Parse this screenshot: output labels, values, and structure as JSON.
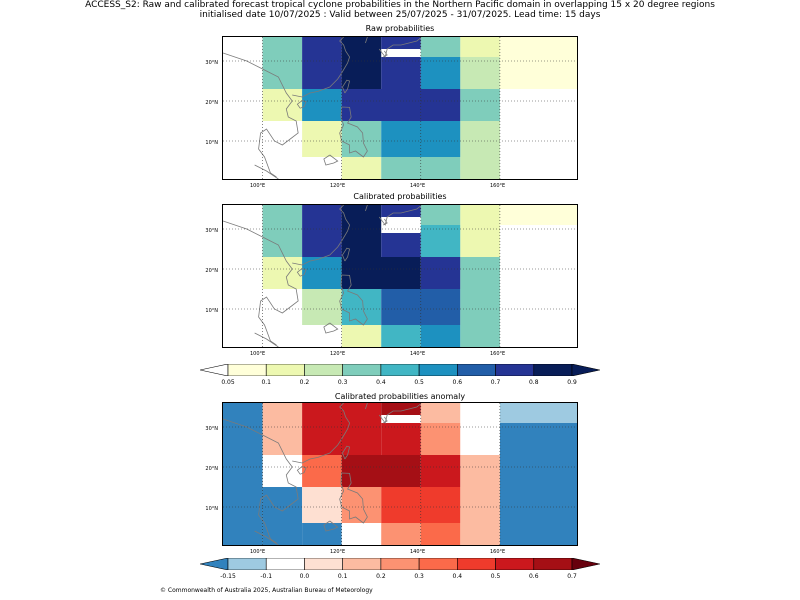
{
  "header": {
    "line1": "ACCESS_S2: Raw and calibrated forecast tropical cyclone probabilities in the Northern Pacific domain in overlapping 15 x 20 degree regions",
    "line2": "initialised date 10/07/2025 :  Valid between 25/07/2025 - 31/07/2025. Lead time: 15 days"
  },
  "axes": {
    "x_ticks": [
      "100°E",
      "120°E",
      "140°E",
      "160°E"
    ],
    "x_tick_values": [
      100,
      120,
      140,
      160
    ],
    "y_ticks": [
      "10°N",
      "20°N",
      "30°N"
    ],
    "y_tick_values": [
      10,
      20,
      30
    ],
    "lon_range": [
      90,
      180
    ],
    "lat_range": [
      0,
      36
    ]
  },
  "colorbars": {
    "prob": {
      "labels": [
        "0.05",
        "0.1",
        "0.2",
        "0.3",
        "0.4",
        "0.5",
        "0.6",
        "0.7",
        "0.8",
        "0.9"
      ],
      "colors": [
        "#ffffd9",
        "#edf8b1",
        "#c7e9b4",
        "#7fcdbb",
        "#41b6c4",
        "#1d91c0",
        "#225ea8",
        "#253494",
        "#081d58"
      ],
      "under": "#ffffff",
      "over": "#081d58"
    },
    "anom": {
      "labels": [
        "-0.15",
        "-0.1",
        "0.0",
        "0.1",
        "0.2",
        "0.3",
        "0.4",
        "0.5",
        "0.6",
        "0.7"
      ],
      "colors": [
        "#9ecae1",
        "#ffffff",
        "#fee0d2",
        "#fcbba1",
        "#fc9272",
        "#fb6a4a",
        "#ef3b2c",
        "#cb181d",
        "#a50f15"
      ],
      "under": "#3182bd",
      "over": "#67000d"
    }
  },
  "footer": {
    "text": "© Commonwealth of Australia 2025, Australian Bureau of Meteorology"
  },
  "chart_data": [
    {
      "type": "heatmap",
      "title": "Raw probabilities",
      "scale": "prob",
      "cells": [
        {
          "lon": [
            100,
            110
          ],
          "lat": [
            23,
            36
          ],
          "v": 0.35
        },
        {
          "lon": [
            110,
            120
          ],
          "lat": [
            23,
            36
          ],
          "v": 0.75
        },
        {
          "lon": [
            120,
            130
          ],
          "lat": [
            23,
            36
          ],
          "v": 0.85
        },
        {
          "lon": [
            130,
            140
          ],
          "lat": [
            33,
            36
          ],
          "v": 0.75
        },
        {
          "lon": [
            130,
            140
          ],
          "lat": [
            23,
            31
          ],
          "v": 0.75
        },
        {
          "lon": [
            140,
            150
          ],
          "lat": [
            31,
            36
          ],
          "v": 0.35
        },
        {
          "lon": [
            140,
            150
          ],
          "lat": [
            23,
            31
          ],
          "v": 0.55
        },
        {
          "lon": [
            150,
            160
          ],
          "lat": [
            31,
            36
          ],
          "v": 0.15
        },
        {
          "lon": [
            150,
            160
          ],
          "lat": [
            23,
            31
          ],
          "v": 0.25
        },
        {
          "lon": [
            160,
            180
          ],
          "lat": [
            23,
            36
          ],
          "v": 0.07
        },
        {
          "lon": [
            100,
            110
          ],
          "lat": [
            15,
            23
          ],
          "v": 0.15
        },
        {
          "lon": [
            110,
            120
          ],
          "lat": [
            15,
            23
          ],
          "v": 0.55
        },
        {
          "lon": [
            120,
            150
          ],
          "lat": [
            15,
            23
          ],
          "v": 0.75
        },
        {
          "lon": [
            150,
            160
          ],
          "lat": [
            15,
            23
          ],
          "v": 0.35
        },
        {
          "lon": [
            110,
            120
          ],
          "lat": [
            6,
            15
          ],
          "v": 0.15
        },
        {
          "lon": [
            120,
            130
          ],
          "lat": [
            6,
            15
          ],
          "v": 0.35
        },
        {
          "lon": [
            130,
            150
          ],
          "lat": [
            6,
            15
          ],
          "v": 0.55
        },
        {
          "lon": [
            150,
            160
          ],
          "lat": [
            6,
            15
          ],
          "v": 0.25
        },
        {
          "lon": [
            120,
            130
          ],
          "lat": [
            0,
            6
          ],
          "v": 0.15
        },
        {
          "lon": [
            130,
            150
          ],
          "lat": [
            0,
            6
          ],
          "v": 0.35
        },
        {
          "lon": [
            150,
            160
          ],
          "lat": [
            0,
            6
          ],
          "v": 0.25
        }
      ]
    },
    {
      "type": "heatmap",
      "title": "Calibrated probabilities",
      "scale": "prob",
      "cells": [
        {
          "lon": [
            100,
            110
          ],
          "lat": [
            23,
            36
          ],
          "v": 0.35
        },
        {
          "lon": [
            110,
            120
          ],
          "lat": [
            23,
            36
          ],
          "v": 0.75
        },
        {
          "lon": [
            120,
            130
          ],
          "lat": [
            23,
            36
          ],
          "v": 0.85
        },
        {
          "lon": [
            130,
            140
          ],
          "lat": [
            33,
            36
          ],
          "v": 0.75
        },
        {
          "lon": [
            130,
            140
          ],
          "lat": [
            23,
            29
          ],
          "v": 0.75
        },
        {
          "lon": [
            140,
            150
          ],
          "lat": [
            31,
            36
          ],
          "v": 0.35
        },
        {
          "lon": [
            140,
            150
          ],
          "lat": [
            23,
            31
          ],
          "v": 0.45
        },
        {
          "lon": [
            150,
            160
          ],
          "lat": [
            23,
            36
          ],
          "v": 0.15
        },
        {
          "lon": [
            160,
            180
          ],
          "lat": [
            31,
            36
          ],
          "v": 0.07
        },
        {
          "lon": [
            100,
            110
          ],
          "lat": [
            15,
            23
          ],
          "v": 0.15
        },
        {
          "lon": [
            110,
            120
          ],
          "lat": [
            15,
            23
          ],
          "v": 0.55
        },
        {
          "lon": [
            120,
            140
          ],
          "lat": [
            15,
            23
          ],
          "v": 0.85
        },
        {
          "lon": [
            140,
            150
          ],
          "lat": [
            15,
            23
          ],
          "v": 0.75
        },
        {
          "lon": [
            150,
            160
          ],
          "lat": [
            15,
            23
          ],
          "v": 0.35
        },
        {
          "lon": [
            110,
            120
          ],
          "lat": [
            6,
            15
          ],
          "v": 0.25
        },
        {
          "lon": [
            120,
            130
          ],
          "lat": [
            6,
            15
          ],
          "v": 0.45
        },
        {
          "lon": [
            130,
            150
          ],
          "lat": [
            6,
            15
          ],
          "v": 0.65
        },
        {
          "lon": [
            150,
            160
          ],
          "lat": [
            6,
            15
          ],
          "v": 0.35
        },
        {
          "lon": [
            120,
            130
          ],
          "lat": [
            0,
            6
          ],
          "v": 0.15
        },
        {
          "lon": [
            130,
            140
          ],
          "lat": [
            0,
            6
          ],
          "v": 0.45
        },
        {
          "lon": [
            140,
            150
          ],
          "lat": [
            0,
            6
          ],
          "v": 0.55
        },
        {
          "lon": [
            150,
            160
          ],
          "lat": [
            0,
            6
          ],
          "v": 0.35
        }
      ]
    },
    {
      "type": "heatmap",
      "title": "Calibrated probabilities anomaly",
      "scale": "anom",
      "cells": [
        {
          "lon": [
            90,
            100
          ],
          "lat": [
            0,
            36
          ],
          "v": -0.2
        },
        {
          "lon": [
            100,
            110
          ],
          "lat": [
            0,
            15
          ],
          "v": -0.2
        },
        {
          "lon": [
            110,
            120
          ],
          "lat": [
            0,
            6
          ],
          "v": -0.2
        },
        {
          "lon": [
            160,
            180
          ],
          "lat": [
            0,
            31
          ],
          "v": -0.2
        },
        {
          "lon": [
            160,
            180
          ],
          "lat": [
            31,
            36
          ],
          "v": -0.12
        },
        {
          "lon": [
            100,
            110
          ],
          "lat": [
            23,
            36
          ],
          "v": 0.15
        },
        {
          "lon": [
            110,
            130
          ],
          "lat": [
            23,
            36
          ],
          "v": 0.55
        },
        {
          "lon": [
            130,
            140
          ],
          "lat": [
            33,
            36
          ],
          "v": 0.65
        },
        {
          "lon": [
            130,
            140
          ],
          "lat": [
            23,
            31
          ],
          "v": 0.55
        },
        {
          "lon": [
            140,
            150
          ],
          "lat": [
            31,
            36
          ],
          "v": 0.15
        },
        {
          "lon": [
            140,
            150
          ],
          "lat": [
            23,
            31
          ],
          "v": 0.25
        },
        {
          "lon": [
            150,
            160
          ],
          "lat": [
            23,
            36
          ],
          "v": -0.05
        },
        {
          "lon": [
            100,
            110
          ],
          "lat": [
            15,
            23
          ],
          "v": -0.05
        },
        {
          "lon": [
            110,
            120
          ],
          "lat": [
            15,
            23
          ],
          "v": 0.35
        },
        {
          "lon": [
            120,
            140
          ],
          "lat": [
            15,
            23
          ],
          "v": 0.65
        },
        {
          "lon": [
            140,
            150
          ],
          "lat": [
            15,
            23
          ],
          "v": 0.55
        },
        {
          "lon": [
            150,
            160
          ],
          "lat": [
            15,
            23
          ],
          "v": 0.15
        },
        {
          "lon": [
            110,
            120
          ],
          "lat": [
            6,
            15
          ],
          "v": 0.05
        },
        {
          "lon": [
            120,
            130
          ],
          "lat": [
            6,
            15
          ],
          "v": 0.25
        },
        {
          "lon": [
            130,
            150
          ],
          "lat": [
            6,
            15
          ],
          "v": 0.45
        },
        {
          "lon": [
            150,
            160
          ],
          "lat": [
            6,
            15
          ],
          "v": 0.15
        },
        {
          "lon": [
            120,
            130
          ],
          "lat": [
            0,
            6
          ],
          "v": -0.05
        },
        {
          "lon": [
            130,
            140
          ],
          "lat": [
            0,
            6
          ],
          "v": 0.25
        },
        {
          "lon": [
            140,
            150
          ],
          "lat": [
            0,
            6
          ],
          "v": 0.35
        },
        {
          "lon": [
            150,
            160
          ],
          "lat": [
            0,
            6
          ],
          "v": 0.15
        }
      ]
    }
  ]
}
